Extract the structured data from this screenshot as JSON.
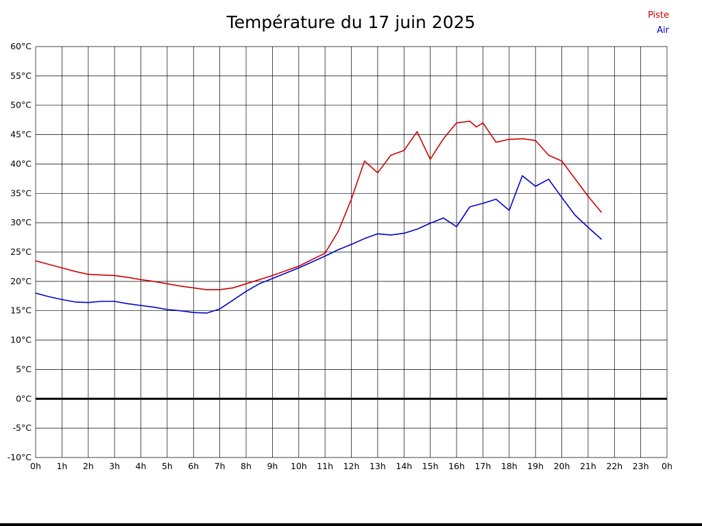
{
  "chart_data": {
    "type": "line",
    "title": "Température du 17 juin 2025",
    "xlabel": "",
    "ylabel": "",
    "xlim": [
      0,
      24
    ],
    "ylim": [
      -10,
      60
    ],
    "grid": true,
    "zero_line": true,
    "legend_position": "top-right",
    "x_ticks": [
      0,
      1,
      2,
      3,
      4,
      5,
      6,
      7,
      8,
      9,
      10,
      11,
      12,
      13,
      14,
      15,
      16,
      17,
      18,
      19,
      20,
      21,
      22,
      23,
      24
    ],
    "x_tick_labels": [
      "0h",
      "1h",
      "2h",
      "3h",
      "4h",
      "5h",
      "6h",
      "7h",
      "8h",
      "9h",
      "10h",
      "11h",
      "12h",
      "13h",
      "14h",
      "15h",
      "16h",
      "17h",
      "18h",
      "19h",
      "20h",
      "21h",
      "22h",
      "23h",
      "0h"
    ],
    "y_ticks": [
      60,
      55,
      50,
      45,
      40,
      35,
      30,
      25,
      20,
      15,
      10,
      5,
      0,
      -5,
      -10
    ],
    "y_tick_labels": [
      "60°C",
      "55°C",
      "50°C",
      "45°C",
      "40°C",
      "35°C",
      "30°C",
      "25°C",
      "20°C",
      "15°C",
      "10°C",
      "5°C",
      "0°C",
      "-5°C",
      "-10°C"
    ],
    "series": [
      {
        "name": "Piste",
        "color": "#cc0000",
        "points": [
          [
            0,
            23.5
          ],
          [
            0.5,
            22.9
          ],
          [
            1,
            22.3
          ],
          [
            1.5,
            21.7
          ],
          [
            2,
            21.2
          ],
          [
            2.5,
            21.1
          ],
          [
            3,
            21.0
          ],
          [
            3.5,
            20.7
          ],
          [
            4,
            20.3
          ],
          [
            4.5,
            20.0
          ],
          [
            5,
            19.6
          ],
          [
            5.5,
            19.2
          ],
          [
            6,
            18.9
          ],
          [
            6.5,
            18.6
          ],
          [
            7,
            18.6
          ],
          [
            7.5,
            18.9
          ],
          [
            8,
            19.6
          ],
          [
            8.5,
            20.3
          ],
          [
            9,
            21.0
          ],
          [
            9.5,
            21.8
          ],
          [
            10,
            22.6
          ],
          [
            10.5,
            23.7
          ],
          [
            11,
            24.8
          ],
          [
            11.5,
            28.5
          ],
          [
            12,
            34.0
          ],
          [
            12.5,
            40.5
          ],
          [
            13,
            38.5
          ],
          [
            13.5,
            41.5
          ],
          [
            14,
            42.3
          ],
          [
            14.5,
            45.5
          ],
          [
            15,
            40.8
          ],
          [
            15.5,
            44.3
          ],
          [
            16,
            47.0
          ],
          [
            16.5,
            47.3
          ],
          [
            16.75,
            46.3
          ],
          [
            17,
            47.0
          ],
          [
            17.5,
            43.7
          ],
          [
            18,
            44.2
          ],
          [
            18.5,
            44.3
          ],
          [
            19,
            44.0
          ],
          [
            19.5,
            41.5
          ],
          [
            20,
            40.5
          ],
          [
            20.5,
            37.5
          ],
          [
            21,
            34.5
          ],
          [
            21.5,
            31.8
          ]
        ]
      },
      {
        "name": "Air",
        "color": "#0000cc",
        "points": [
          [
            0,
            18.0
          ],
          [
            0.5,
            17.4
          ],
          [
            1,
            16.9
          ],
          [
            1.5,
            16.5
          ],
          [
            2,
            16.4
          ],
          [
            2.5,
            16.6
          ],
          [
            3,
            16.6
          ],
          [
            3.5,
            16.2
          ],
          [
            4,
            15.9
          ],
          [
            4.5,
            15.6
          ],
          [
            5,
            15.2
          ],
          [
            5.5,
            15.0
          ],
          [
            6,
            14.7
          ],
          [
            6.5,
            14.6
          ],
          [
            7,
            15.3
          ],
          [
            7.5,
            16.8
          ],
          [
            8,
            18.3
          ],
          [
            8.5,
            19.6
          ],
          [
            9,
            20.5
          ],
          [
            9.5,
            21.4
          ],
          [
            10,
            22.3
          ],
          [
            10.5,
            23.3
          ],
          [
            11,
            24.3
          ],
          [
            11.5,
            25.4
          ],
          [
            12,
            26.3
          ],
          [
            12.5,
            27.3
          ],
          [
            13,
            28.1
          ],
          [
            13.5,
            27.9
          ],
          [
            14,
            28.2
          ],
          [
            14.5,
            28.9
          ],
          [
            15,
            29.9
          ],
          [
            15.5,
            30.8
          ],
          [
            16,
            29.3
          ],
          [
            16.5,
            32.7
          ],
          [
            17,
            33.3
          ],
          [
            17.5,
            34.0
          ],
          [
            18,
            32.1
          ],
          [
            18.5,
            38.0
          ],
          [
            19,
            36.2
          ],
          [
            19.5,
            37.4
          ],
          [
            20,
            34.3
          ],
          [
            20.5,
            31.3
          ],
          [
            21,
            29.2
          ],
          [
            21.5,
            27.2
          ]
        ]
      }
    ]
  }
}
